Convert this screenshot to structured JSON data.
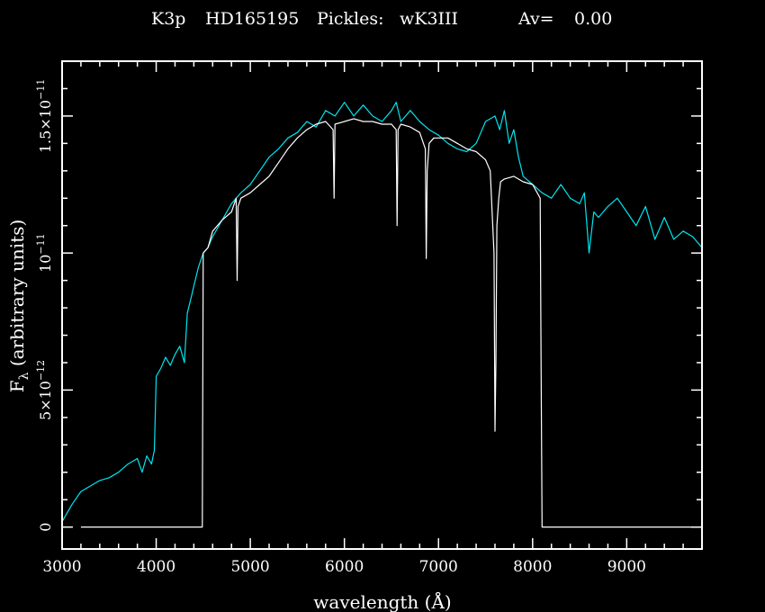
{
  "header": {
    "spectral_type": "K3p",
    "star": "HD165195",
    "pickles_label": "Pickles:",
    "pickles_template": "wK3III",
    "av_label": "Av=",
    "av_value": "0.00"
  },
  "colors": {
    "background": "#000000",
    "axes": "#ffffff",
    "observed": "#ffffff",
    "template": "#00e5ee"
  },
  "chart_data": {
    "type": "line",
    "xlabel": "wavelength (Å)",
    "ylabel_symbol": "F",
    "ylabel_subscript": "λ",
    "ylabel_rest": " (arbitrary units)",
    "xlim": [
      3000,
      9800
    ],
    "ylim": [
      -8e-13,
      1.7e-11
    ],
    "x_ticks": [
      3000,
      4000,
      5000,
      6000,
      7000,
      8000,
      9000
    ],
    "x_tick_labels": [
      "3000",
      "4000",
      "5000",
      "6000",
      "7000",
      "8000",
      "9000"
    ],
    "y_ticks": [
      {
        "value": 0,
        "mantissa": "0",
        "exp": ""
      },
      {
        "value": 5e-12,
        "mantissa": "5×10",
        "exp": "−12"
      },
      {
        "value": 1e-11,
        "mantissa": "10",
        "exp": "−11"
      },
      {
        "value": 1.5e-11,
        "mantissa": "1.5×10",
        "exp": "−11"
      }
    ],
    "grid": false,
    "series": [
      {
        "color": "#00e5ee",
        "x": [
          3000,
          3100,
          3200,
          3300,
          3400,
          3500,
          3600,
          3700,
          3800,
          3850,
          3900,
          3950,
          3980,
          4000,
          4050,
          4100,
          4150,
          4200,
          4250,
          4300,
          4330,
          4380,
          4400,
          4450,
          4500,
          4550,
          4600,
          4700,
          4800,
          4900,
          5000,
          5100,
          5200,
          5300,
          5400,
          5500,
          5600,
          5700,
          5800,
          5900,
          6000,
          6100,
          6200,
          6300,
          6400,
          6500,
          6550,
          6600,
          6700,
          6800,
          6900,
          7000,
          7100,
          7200,
          7300,
          7400,
          7500,
          7600,
          7650,
          7700,
          7750,
          7800,
          7850,
          7900,
          8000,
          8100,
          8200,
          8300,
          8400,
          8500,
          8550,
          8600,
          8650,
          8700,
          8800,
          8900,
          9000,
          9100,
          9200,
          9300,
          9400,
          9500,
          9600,
          9700,
          9800
        ],
        "y": [
          2e-13,
          8e-13,
          1.3e-12,
          1.5e-12,
          1.7e-12,
          1.8e-12,
          2e-12,
          2.3e-12,
          2.5e-12,
          2e-12,
          2.6e-12,
          2.3e-12,
          2.8e-12,
          5.5e-12,
          5.8e-12,
          6.2e-12,
          5.9e-12,
          6.3e-12,
          6.6e-12,
          6e-12,
          7.8e-12,
          8.5e-12,
          8.8e-12,
          9.5e-12,
          1e-11,
          1.02e-11,
          1.06e-11,
          1.12e-11,
          1.18e-11,
          1.22e-11,
          1.25e-11,
          1.3e-11,
          1.35e-11,
          1.38e-11,
          1.42e-11,
          1.44e-11,
          1.48e-11,
          1.46e-11,
          1.52e-11,
          1.5e-11,
          1.55e-11,
          1.5e-11,
          1.54e-11,
          1.5e-11,
          1.48e-11,
          1.52e-11,
          1.55e-11,
          1.48e-11,
          1.52e-11,
          1.48e-11,
          1.45e-11,
          1.43e-11,
          1.4e-11,
          1.38e-11,
          1.37e-11,
          1.4e-11,
          1.48e-11,
          1.5e-11,
          1.45e-11,
          1.52e-11,
          1.4e-11,
          1.45e-11,
          1.35e-11,
          1.28e-11,
          1.25e-11,
          1.22e-11,
          1.2e-11,
          1.25e-11,
          1.2e-11,
          1.18e-11,
          1.22e-11,
          1e-11,
          1.15e-11,
          1.13e-11,
          1.17e-11,
          1.2e-11,
          1.15e-11,
          1.1e-11,
          1.17e-11,
          1.05e-11,
          1.13e-11,
          1.05e-11,
          1.08e-11,
          1.06e-11,
          1.02e-11
        ]
      },
      {
        "color": "#ffffff",
        "x": [
          3200,
          4490,
          4495,
          4500,
          4550,
          4600,
          4700,
          4800,
          4850,
          4860,
          4870,
          4900,
          5000,
          5100,
          5200,
          5300,
          5400,
          5500,
          5600,
          5700,
          5800,
          5880,
          5890,
          5900,
          6000,
          6100,
          6200,
          6300,
          6400,
          6500,
          6550,
          6560,
          6570,
          6600,
          6700,
          6800,
          6860,
          6870,
          6880,
          6900,
          6950,
          7000,
          7100,
          7200,
          7300,
          7400,
          7500,
          7550,
          7590,
          7600,
          7610,
          7620,
          7640,
          7660,
          7700,
          7800,
          7900,
          8000,
          8080,
          8090,
          8100,
          8110,
          9800
        ],
        "y": [
          0,
          0,
          5e-12,
          1e-11,
          1.02e-11,
          1.08e-11,
          1.12e-11,
          1.15e-11,
          1.2e-11,
          9e-12,
          1.17e-11,
          1.2e-11,
          1.22e-11,
          1.25e-11,
          1.28e-11,
          1.33e-11,
          1.38e-11,
          1.42e-11,
          1.45e-11,
          1.47e-11,
          1.48e-11,
          1.45e-11,
          1.2e-11,
          1.47e-11,
          1.48e-11,
          1.49e-11,
          1.48e-11,
          1.48e-11,
          1.47e-11,
          1.47e-11,
          1.45e-11,
          1.1e-11,
          1.45e-11,
          1.47e-11,
          1.46e-11,
          1.44e-11,
          1.38e-11,
          9.8e-12,
          1.3e-11,
          1.4e-11,
          1.42e-11,
          1.42e-11,
          1.42e-11,
          1.4e-11,
          1.38e-11,
          1.37e-11,
          1.34e-11,
          1.3e-11,
          1e-11,
          3.5e-12,
          6e-12,
          1.1e-11,
          1.2e-11,
          1.26e-11,
          1.27e-11,
          1.28e-11,
          1.26e-11,
          1.25e-11,
          1.2e-11,
          6e-12,
          0,
          0,
          0
        ]
      }
    ]
  }
}
